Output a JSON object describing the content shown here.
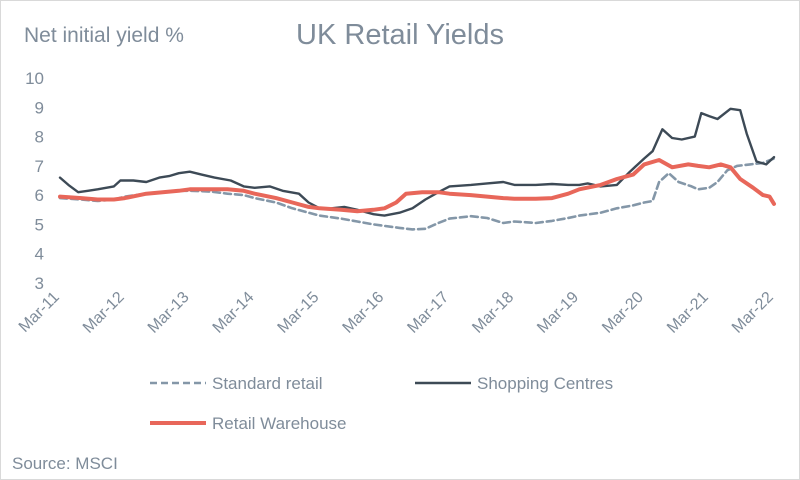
{
  "chart_data": {
    "type": "line",
    "title": "UK Retail Yields",
    "ylabel": "Net initial yield %",
    "source": "Source: MSCI",
    "ylim": [
      3,
      10
    ],
    "yticks": [
      "3",
      "4",
      "5",
      "6",
      "7",
      "8",
      "9",
      "10"
    ],
    "xlim": [
      2011.17,
      2022.17
    ],
    "xtick_positions": [
      2011.17,
      2012.17,
      2013.17,
      2014.17,
      2015.17,
      2016.17,
      2017.17,
      2018.17,
      2019.17,
      2020.17,
      2021.17,
      2022.17
    ],
    "xticks": [
      "Mar-11",
      "Mar-12",
      "Mar-13",
      "Mar-14",
      "Mar-15",
      "Mar-16",
      "Mar-17",
      "Mar-18",
      "Mar-19",
      "Mar-20",
      "Mar-21",
      "Mar-22"
    ],
    "grid": false,
    "legend_position": "bottom",
    "series": [
      {
        "name": "Standard retail",
        "color": "#8497a8",
        "style": "dashed",
        "points": [
          [
            2011.17,
            5.9
          ],
          [
            2011.5,
            5.85
          ],
          [
            2011.75,
            5.8
          ],
          [
            2012.0,
            5.85
          ],
          [
            2012.17,
            5.95
          ],
          [
            2012.5,
            6.05
          ],
          [
            2012.75,
            6.1
          ],
          [
            2013.0,
            6.15
          ],
          [
            2013.17,
            6.15
          ],
          [
            2013.5,
            6.12
          ],
          [
            2013.75,
            6.05
          ],
          [
            2014.0,
            6.0
          ],
          [
            2014.17,
            5.9
          ],
          [
            2014.5,
            5.75
          ],
          [
            2014.75,
            5.55
          ],
          [
            2015.0,
            5.4
          ],
          [
            2015.17,
            5.3
          ],
          [
            2015.5,
            5.2
          ],
          [
            2015.75,
            5.1
          ],
          [
            2016.0,
            5.0
          ],
          [
            2016.17,
            4.95
          ],
          [
            2016.4,
            4.88
          ],
          [
            2016.6,
            4.83
          ],
          [
            2016.8,
            4.85
          ],
          [
            2017.0,
            5.05
          ],
          [
            2017.17,
            5.2
          ],
          [
            2017.5,
            5.28
          ],
          [
            2017.75,
            5.22
          ],
          [
            2018.0,
            5.05
          ],
          [
            2018.17,
            5.1
          ],
          [
            2018.5,
            5.05
          ],
          [
            2018.75,
            5.12
          ],
          [
            2019.0,
            5.22
          ],
          [
            2019.17,
            5.3
          ],
          [
            2019.5,
            5.4
          ],
          [
            2019.75,
            5.55
          ],
          [
            2020.0,
            5.65
          ],
          [
            2020.17,
            5.75
          ],
          [
            2020.3,
            5.8
          ],
          [
            2020.4,
            6.45
          ],
          [
            2020.55,
            6.75
          ],
          [
            2020.7,
            6.45
          ],
          [
            2020.9,
            6.3
          ],
          [
            2021.0,
            6.2
          ],
          [
            2021.17,
            6.25
          ],
          [
            2021.3,
            6.45
          ],
          [
            2021.45,
            6.85
          ],
          [
            2021.6,
            7.0
          ],
          [
            2021.8,
            7.05
          ],
          [
            2022.0,
            7.1
          ],
          [
            2022.17,
            7.25
          ]
        ]
      },
      {
        "name": "Shopping Centres",
        "color": "#3d4a56",
        "style": "solid",
        "points": [
          [
            2011.17,
            6.6
          ],
          [
            2011.3,
            6.35
          ],
          [
            2011.45,
            6.1
          ],
          [
            2011.6,
            6.15
          ],
          [
            2011.75,
            6.2
          ],
          [
            2012.0,
            6.3
          ],
          [
            2012.1,
            6.5
          ],
          [
            2012.3,
            6.5
          ],
          [
            2012.5,
            6.45
          ],
          [
            2012.7,
            6.6
          ],
          [
            2012.85,
            6.65
          ],
          [
            2013.0,
            6.75
          ],
          [
            2013.17,
            6.8
          ],
          [
            2013.35,
            6.7
          ],
          [
            2013.55,
            6.6
          ],
          [
            2013.8,
            6.5
          ],
          [
            2014.0,
            6.3
          ],
          [
            2014.17,
            6.25
          ],
          [
            2014.4,
            6.3
          ],
          [
            2014.6,
            6.15
          ],
          [
            2014.85,
            6.05
          ],
          [
            2015.0,
            5.75
          ],
          [
            2015.17,
            5.55
          ],
          [
            2015.35,
            5.55
          ],
          [
            2015.55,
            5.6
          ],
          [
            2015.75,
            5.5
          ],
          [
            2016.0,
            5.35
          ],
          [
            2016.17,
            5.3
          ],
          [
            2016.4,
            5.4
          ],
          [
            2016.6,
            5.55
          ],
          [
            2016.8,
            5.85
          ],
          [
            2017.0,
            6.1
          ],
          [
            2017.17,
            6.3
          ],
          [
            2017.5,
            6.35
          ],
          [
            2017.75,
            6.4
          ],
          [
            2018.0,
            6.45
          ],
          [
            2018.17,
            6.35
          ],
          [
            2018.5,
            6.35
          ],
          [
            2018.75,
            6.38
          ],
          [
            2019.0,
            6.35
          ],
          [
            2019.17,
            6.35
          ],
          [
            2019.3,
            6.4
          ],
          [
            2019.5,
            6.3
          ],
          [
            2019.75,
            6.35
          ],
          [
            2019.95,
            6.8
          ],
          [
            2020.17,
            7.25
          ],
          [
            2020.3,
            7.5
          ],
          [
            2020.45,
            8.25
          ],
          [
            2020.6,
            7.95
          ],
          [
            2020.75,
            7.9
          ],
          [
            2020.95,
            8.0
          ],
          [
            2021.05,
            8.8
          ],
          [
            2021.17,
            8.7
          ],
          [
            2021.3,
            8.6
          ],
          [
            2021.5,
            8.95
          ],
          [
            2021.65,
            8.9
          ],
          [
            2021.75,
            8.1
          ],
          [
            2021.9,
            7.15
          ],
          [
            2022.05,
            7.05
          ],
          [
            2022.17,
            7.3
          ]
        ]
      },
      {
        "name": "Retail Warehouse",
        "color": "#e8675a",
        "style": "solid-thick",
        "points": [
          [
            2011.17,
            5.95
          ],
          [
            2011.5,
            5.9
          ],
          [
            2011.75,
            5.85
          ],
          [
            2012.0,
            5.85
          ],
          [
            2012.17,
            5.9
          ],
          [
            2012.5,
            6.05
          ],
          [
            2012.75,
            6.1
          ],
          [
            2013.0,
            6.15
          ],
          [
            2013.17,
            6.2
          ],
          [
            2013.5,
            6.2
          ],
          [
            2013.75,
            6.2
          ],
          [
            2014.0,
            6.15
          ],
          [
            2014.17,
            6.05
          ],
          [
            2014.5,
            5.9
          ],
          [
            2014.75,
            5.75
          ],
          [
            2015.0,
            5.6
          ],
          [
            2015.17,
            5.55
          ],
          [
            2015.5,
            5.5
          ],
          [
            2015.75,
            5.45
          ],
          [
            2016.0,
            5.5
          ],
          [
            2016.17,
            5.55
          ],
          [
            2016.35,
            5.75
          ],
          [
            2016.5,
            6.05
          ],
          [
            2016.75,
            6.1
          ],
          [
            2017.0,
            6.1
          ],
          [
            2017.17,
            6.05
          ],
          [
            2017.5,
            6.0
          ],
          [
            2017.75,
            5.95
          ],
          [
            2018.0,
            5.9
          ],
          [
            2018.17,
            5.88
          ],
          [
            2018.5,
            5.88
          ],
          [
            2018.75,
            5.9
          ],
          [
            2019.0,
            6.05
          ],
          [
            2019.17,
            6.2
          ],
          [
            2019.5,
            6.35
          ],
          [
            2019.75,
            6.55
          ],
          [
            2020.0,
            6.7
          ],
          [
            2020.17,
            7.05
          ],
          [
            2020.4,
            7.2
          ],
          [
            2020.6,
            6.95
          ],
          [
            2020.85,
            7.05
          ],
          [
            2021.0,
            7.0
          ],
          [
            2021.17,
            6.95
          ],
          [
            2021.35,
            7.05
          ],
          [
            2021.5,
            6.95
          ],
          [
            2021.65,
            6.55
          ],
          [
            2021.85,
            6.25
          ],
          [
            2022.0,
            6.0
          ],
          [
            2022.1,
            5.95
          ],
          [
            2022.17,
            5.7
          ]
        ]
      }
    ]
  }
}
